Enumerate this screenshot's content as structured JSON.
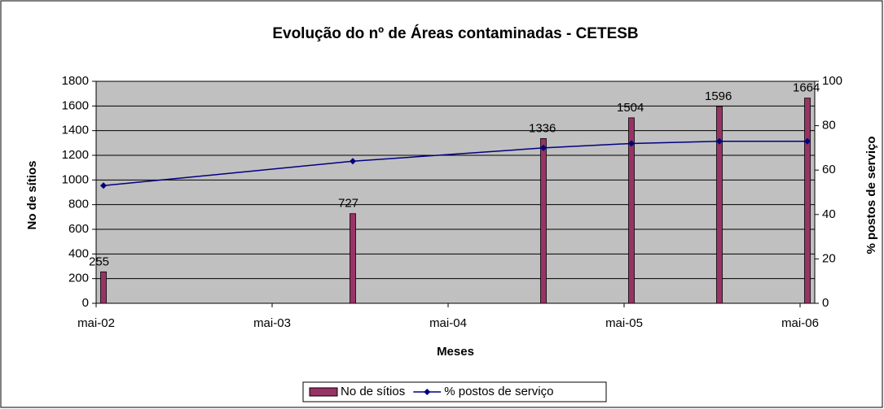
{
  "chart_data": {
    "type": "bar-line",
    "title": "Evolução do nº de Áreas contaminadas - CETESB",
    "x_label": "Meses",
    "y_label": "No de sítios",
    "y2_label": "% postos de serviço",
    "x": [
      "2002-05",
      "2003-10",
      "2004-11",
      "2005-05",
      "2005-11",
      "2006-05"
    ],
    "xlim": [
      "2002-05",
      "2006-05"
    ],
    "xticks": [
      {
        "value": "2002-05",
        "label": "mai-02"
      },
      {
        "value": "2003-05",
        "label": "mai-03"
      },
      {
        "value": "2004-05",
        "label": "mai-04"
      },
      {
        "value": "2005-05",
        "label": "mai-05"
      },
      {
        "value": "2006-05",
        "label": "mai-06"
      }
    ],
    "series": [
      {
        "name": "No de sítios",
        "type": "bar",
        "color": "#993366",
        "values": [
          255,
          727,
          1336,
          1504,
          1596,
          1664
        ]
      },
      {
        "name": "% postos de serviço",
        "type": "line",
        "color": "#000080",
        "axis": "y2",
        "values": [
          53,
          64,
          70,
          72,
          73,
          73
        ]
      }
    ],
    "ylim": [
      0,
      1800
    ],
    "yticks": [
      0,
      200,
      400,
      600,
      800,
      1000,
      1200,
      1400,
      1600,
      1800
    ],
    "y2lim": [
      0,
      100
    ],
    "y2ticks": [
      0,
      20,
      40,
      60,
      80,
      100
    ],
    "legend": "bottom"
  }
}
